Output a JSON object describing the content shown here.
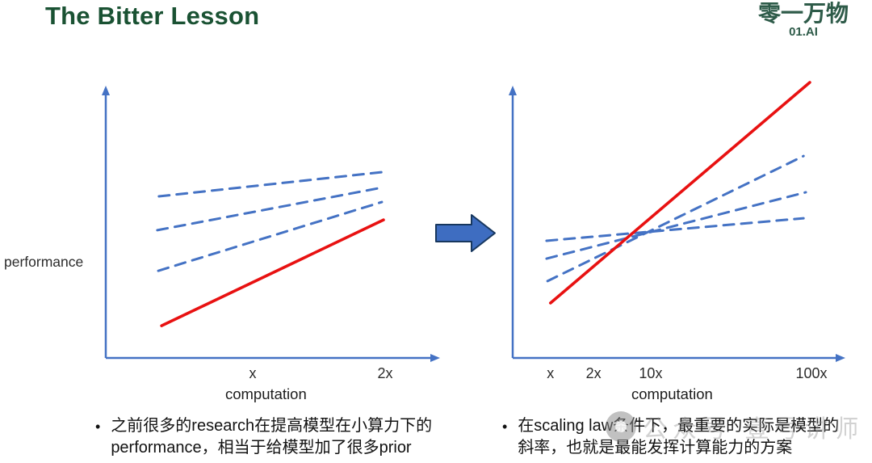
{
  "title": "The Bitter Lesson",
  "logo": {
    "name": "零一万物",
    "sub": "01.AI"
  },
  "colors": {
    "title_green": "#1a5233",
    "logo_green": "#2e5b49",
    "axis_blue": "#4472c4",
    "dashed_blue": "#4472c4",
    "line_red": "#e81111",
    "arrow_fill": "#3e6dc1",
    "arrow_stroke": "#17375e"
  },
  "chart_data": [
    {
      "type": "line",
      "title": "",
      "xlabel": "computation",
      "ylabel": "performance",
      "x_ticks": [
        {
          "label": "x",
          "pos": 0.445
        },
        {
          "label": "2x",
          "pos": 0.846
        }
      ],
      "grid": false,
      "legend": "none",
      "lines": [
        {
          "id": "prior-method-1",
          "style": "dashed",
          "color": "#4472c4",
          "points": [
            [
              0.161,
              0.597
            ],
            [
              0.841,
              0.687
            ]
          ]
        },
        {
          "id": "prior-method-2",
          "style": "dashed",
          "color": "#4472c4",
          "points": [
            [
              0.156,
              0.472
            ],
            [
              0.839,
              0.63
            ]
          ]
        },
        {
          "id": "prior-method-3",
          "style": "dashed",
          "color": "#4472c4",
          "points": [
            [
              0.159,
              0.322
            ],
            [
              0.836,
              0.576
            ]
          ]
        },
        {
          "id": "scaling-method",
          "style": "solid",
          "color": "#e81111",
          "points": [
            [
              0.169,
              0.119
            ],
            [
              0.841,
              0.51
            ]
          ]
        }
      ]
    },
    {
      "type": "line",
      "title": "",
      "xlabel": "computation",
      "ylabel": "",
      "x_ticks": [
        {
          "label": "x",
          "pos": 0.115
        },
        {
          "label": "2x",
          "pos": 0.246
        },
        {
          "label": "10x",
          "pos": 0.42
        },
        {
          "label": "100x",
          "pos": 0.909
        }
      ],
      "grid": false,
      "legend": "none",
      "lines": [
        {
          "id": "prior-method-1",
          "style": "dashed",
          "color": "#4472c4",
          "points": [
            [
              0.106,
              0.284
            ],
            [
              0.885,
              0.746
            ]
          ]
        },
        {
          "id": "prior-method-2",
          "style": "dashed",
          "color": "#4472c4",
          "points": [
            [
              0.103,
              0.367
            ],
            [
              0.892,
              0.612
            ]
          ]
        },
        {
          "id": "prior-method-3",
          "style": "dashed",
          "color": "#4472c4",
          "points": [
            [
              0.103,
              0.433
            ],
            [
              0.885,
              0.516
            ]
          ]
        },
        {
          "id": "scaling-method",
          "style": "solid",
          "color": "#e81111",
          "points": [
            [
              0.115,
              0.203
            ],
            [
              0.904,
              1.018
            ]
          ]
        }
      ]
    }
  ],
  "bullets": {
    "left": {
      "marker": "•",
      "lines": [
        "之前很多的research在提高模型在小算力下的",
        "performance，相当于给模型加了很多prior"
      ]
    },
    "right": {
      "marker": "•",
      "lines": [
        "在scaling law条件下，最重要的实际是模型的",
        "斜率，也就是最能发挥计算能力的方案"
      ]
    }
  },
  "watermark": {
    "icon": "circle-logo",
    "text": "公众号 壹号讲师"
  }
}
